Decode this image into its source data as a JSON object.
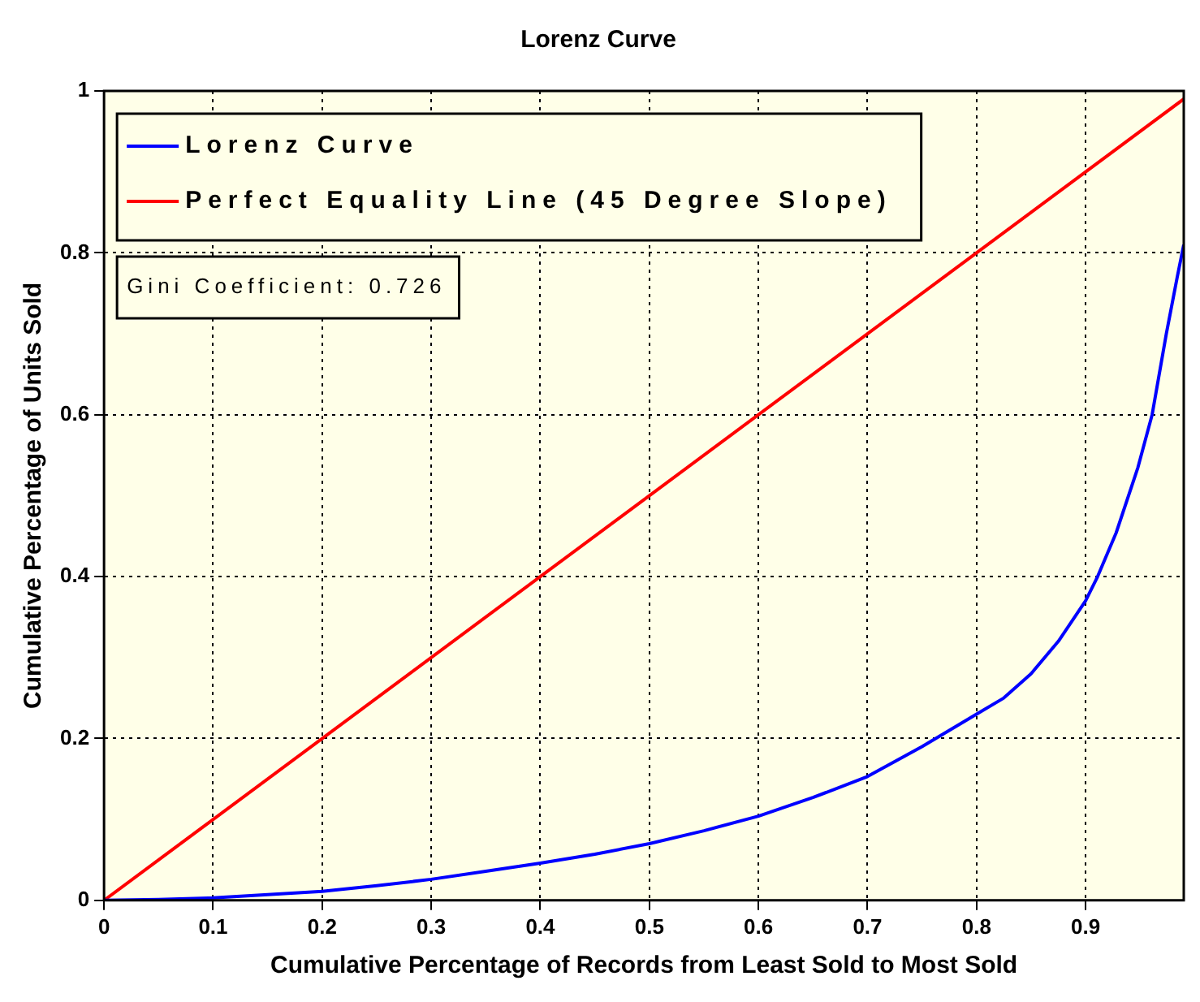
{
  "chart_data": {
    "type": "line",
    "title": "Lorenz Curve",
    "xlabel": "Cumulative Percentage of Records from Least Sold to Most Sold",
    "ylabel": "Cumulative Percentage of Units Sold",
    "xlim": [
      0,
      0.99
    ],
    "xticks": [
      0,
      0.1,
      0.2,
      0.3,
      0.4,
      0.5,
      0.6,
      0.7,
      0.8,
      0.9
    ],
    "ylim": [
      0,
      1
    ],
    "yticks": [
      0,
      0.2,
      0.4,
      0.6,
      0.8,
      1
    ],
    "grid": true,
    "legend": "top left",
    "marker": "none",
    "line_style": "solid",
    "annotations": [
      "Gini Coefficient: 0.726"
    ],
    "series": [
      {
        "name": "Lorenz Curve",
        "color": "#0000ff",
        "x": [
          0,
          0.05,
          0.1,
          0.15,
          0.2,
          0.25,
          0.3,
          0.35,
          0.4,
          0.45,
          0.5,
          0.55,
          0.6,
          0.65,
          0.7,
          0.75,
          0.8,
          0.825,
          0.85,
          0.875,
          0.9,
          0.911,
          0.928,
          0.948,
          0.961,
          0.974,
          0.984,
          0.99
        ],
        "values": [
          0,
          0.001,
          0.003,
          0.007,
          0.011,
          0.018,
          0.026,
          0.036,
          0.046,
          0.057,
          0.07,
          0.086,
          0.104,
          0.127,
          0.153,
          0.19,
          0.23,
          0.25,
          0.28,
          0.32,
          0.37,
          0.4,
          0.454,
          0.535,
          0.6,
          0.7,
          0.77,
          0.81
        ]
      },
      {
        "name": "Perfect Equality Line (45 Degree Slope)",
        "color": "#ff0000",
        "x": [
          0,
          0.99
        ],
        "values": [
          0,
          0.99
        ]
      }
    ]
  }
}
